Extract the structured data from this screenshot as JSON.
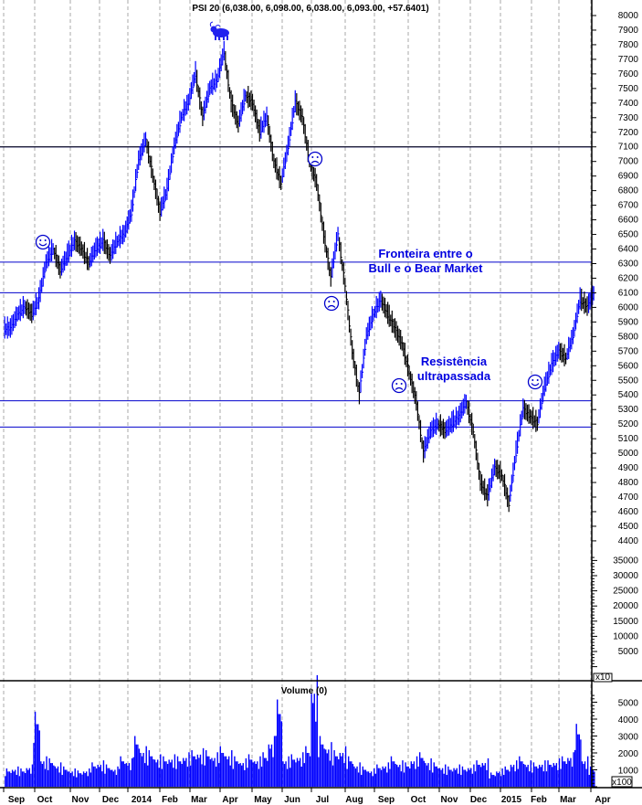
{
  "chart_data": {
    "type": "bar",
    "title": "PSI 20 (6,038.00, 6,098.00, 6,038.00, 6,093.00, +57.6401)",
    "volume_title": "Volume (0)",
    "price_ylim": [
      4400,
      8000
    ],
    "price_ticks": [
      4400,
      4500,
      4600,
      4700,
      4800,
      4900,
      5000,
      5100,
      5200,
      5300,
      5400,
      5500,
      5600,
      5700,
      5800,
      5900,
      6000,
      6100,
      6200,
      6300,
      6400,
      6500,
      6600,
      6700,
      6800,
      6900,
      7000,
      7100,
      7200,
      7300,
      7400,
      7500,
      7600,
      7700,
      7800,
      7900,
      8000
    ],
    "secondary_ticks": [
      5000,
      10000,
      15000,
      20000,
      25000,
      30000,
      35000
    ],
    "secondary_multiplier": "x10",
    "volume_ticks": [
      1000,
      2000,
      3000,
      4000,
      5000
    ],
    "volume_multiplier": "x100",
    "x_labels": [
      "Sep",
      "Oct",
      "Nov",
      "Dec",
      "2014",
      "Feb",
      "Mar",
      "Apr",
      "May",
      "Jun",
      "Jul",
      "Aug",
      "Sep",
      "Oct",
      "Nov",
      "Dec",
      "2015",
      "Feb",
      "Mar",
      "Apr"
    ],
    "grid": "vertical dashed",
    "colors": {
      "up": "#0000ff",
      "down": "#000000",
      "volume": "#0000ff",
      "lines": "#0000cc",
      "annotation": "#0000e0"
    },
    "horizontal_lines": [
      7100,
      6310,
      6100,
      5360,
      5180
    ],
    "annotations": [
      {
        "text": [
          "Fronteira entre o",
          "Bull e o Bear Market"
        ]
      },
      {
        "text": [
          "Resistência",
          "ultrapassada"
        ]
      }
    ],
    "markers": [
      {
        "icon": "bull-icon",
        "date": "2014-04-01"
      },
      {
        "icon": "smiley-icon",
        "date": "2013-10-10"
      },
      {
        "icon": "sad-face-icon",
        "date": "2014-07-05"
      },
      {
        "icon": "sad-face-icon",
        "date": "2014-07-22"
      },
      {
        "icon": "sad-face-icon",
        "date": "2014-10-06"
      },
      {
        "icon": "smiley-icon",
        "date": "2015-02-05"
      }
    ],
    "series": [
      [
        "2013-09-02",
        5850,
        900
      ],
      [
        "2013-09-09",
        5950,
        1000
      ],
      [
        "2013-09-16",
        6000,
        900
      ],
      [
        "2013-09-23",
        5950,
        1100
      ],
      [
        "2013-09-30",
        6050,
        3700
      ],
      [
        "2013-10-07",
        6300,
        1500
      ],
      [
        "2013-10-14",
        6400,
        1400
      ],
      [
        "2013-10-21",
        6250,
        1200
      ],
      [
        "2013-10-28",
        6350,
        1000
      ],
      [
        "2013-11-04",
        6450,
        900
      ],
      [
        "2013-11-11",
        6400,
        800
      ],
      [
        "2013-11-18",
        6300,
        900
      ],
      [
        "2013-11-25",
        6400,
        1200
      ],
      [
        "2013-12-02",
        6450,
        1300
      ],
      [
        "2013-12-09",
        6350,
        1100
      ],
      [
        "2013-12-16",
        6450,
        1000
      ],
      [
        "2013-12-23",
        6500,
        1500
      ],
      [
        "2013-12-30",
        6650,
        1400
      ],
      [
        "2014-01-06",
        7000,
        2500
      ],
      [
        "2014-01-13",
        7150,
        2000
      ],
      [
        "2014-01-20",
        6900,
        1800
      ],
      [
        "2014-01-27",
        6650,
        1600
      ],
      [
        "2014-02-03",
        6800,
        1500
      ],
      [
        "2014-02-10",
        7100,
        1600
      ],
      [
        "2014-02-17",
        7300,
        1500
      ],
      [
        "2014-02-24",
        7400,
        1700
      ],
      [
        "2014-03-03",
        7600,
        1800
      ],
      [
        "2014-03-10",
        7300,
        1900
      ],
      [
        "2014-03-17",
        7500,
        1800
      ],
      [
        "2014-03-24",
        7550,
        1700
      ],
      [
        "2014-03-31",
        7750,
        2000
      ],
      [
        "2014-04-07",
        7400,
        1800
      ],
      [
        "2014-04-14",
        7250,
        1500
      ],
      [
        "2014-04-21",
        7450,
        1400
      ],
      [
        "2014-04-28",
        7400,
        1600
      ],
      [
        "2014-05-05",
        7200,
        1500
      ],
      [
        "2014-05-12",
        7300,
        1700
      ],
      [
        "2014-05-19",
        7000,
        2500
      ],
      [
        "2014-05-26",
        6850,
        4300
      ],
      [
        "2014-06-02",
        7100,
        1500
      ],
      [
        "2014-06-09",
        7400,
        1600
      ],
      [
        "2014-06-16",
        7300,
        1700
      ],
      [
        "2014-06-23",
        7000,
        2000
      ],
      [
        "2014-06-30",
        6850,
        5500
      ],
      [
        "2014-07-07",
        6500,
        2500
      ],
      [
        "2014-07-14",
        6200,
        2200
      ],
      [
        "2014-07-21",
        6500,
        1800
      ],
      [
        "2014-07-28",
        6150,
        2000
      ],
      [
        "2014-08-04",
        5700,
        1500
      ],
      [
        "2014-08-11",
        5400,
        1200
      ],
      [
        "2014-08-18",
        5800,
        1000
      ],
      [
        "2014-08-25",
        5950,
        900
      ],
      [
        "2014-09-01",
        6050,
        1100
      ],
      [
        "2014-09-08",
        5950,
        1200
      ],
      [
        "2014-09-15",
        5850,
        1500
      ],
      [
        "2014-09-22",
        5750,
        1300
      ],
      [
        "2014-09-29",
        5550,
        1200
      ],
      [
        "2014-10-06",
        5350,
        1500
      ],
      [
        "2014-10-13",
        5000,
        1700
      ],
      [
        "2014-10-20",
        5150,
        1400
      ],
      [
        "2014-10-27",
        5200,
        1200
      ],
      [
        "2014-11-03",
        5150,
        1100
      ],
      [
        "2014-11-10",
        5200,
        1000
      ],
      [
        "2014-11-17",
        5250,
        1100
      ],
      [
        "2014-11-24",
        5350,
        1000
      ],
      [
        "2014-12-01",
        5150,
        1100
      ],
      [
        "2014-12-08",
        4800,
        1300
      ],
      [
        "2014-12-15",
        4700,
        1400
      ],
      [
        "2014-12-22",
        4900,
        700
      ],
      [
        "2014-12-29",
        4850,
        900
      ],
      [
        "2015-01-05",
        4650,
        1000
      ],
      [
        "2015-01-12",
        5000,
        1300
      ],
      [
        "2015-01-19",
        5300,
        1500
      ],
      [
        "2015-01-26",
        5250,
        1300
      ],
      [
        "2015-02-02",
        5200,
        1200
      ],
      [
        "2015-02-09",
        5450,
        1300
      ],
      [
        "2015-02-16",
        5600,
        1300
      ],
      [
        "2015-02-23",
        5700,
        1400
      ],
      [
        "2015-03-02",
        5650,
        1500
      ],
      [
        "2015-03-09",
        5800,
        1700
      ],
      [
        "2015-03-16",
        6050,
        3100
      ],
      [
        "2015-03-23",
        6000,
        1500
      ],
      [
        "2015-03-30",
        6093,
        1000
      ]
    ]
  }
}
